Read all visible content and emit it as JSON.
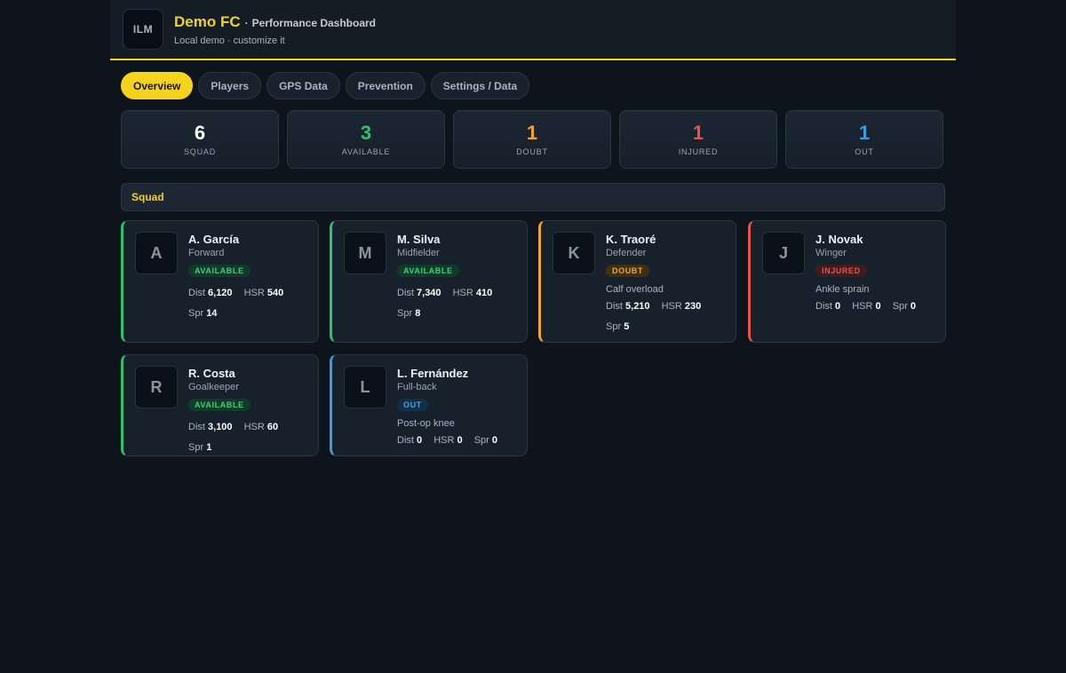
{
  "header": {
    "logo": "ILM",
    "club_name": "Demo FC",
    "separator": "·",
    "dashboard_title": "Performance Dashboard",
    "subtitle": "Local demo · customize it"
  },
  "tabs": [
    {
      "label": "Overview",
      "active": true
    },
    {
      "label": "Players",
      "active": false
    },
    {
      "label": "GPS Data",
      "active": false
    },
    {
      "label": "Prevention",
      "active": false
    },
    {
      "label": "Settings / Data",
      "active": false
    }
  ],
  "stats": [
    {
      "value": "6",
      "label": "SQUAD",
      "color": "#ffffff"
    },
    {
      "value": "3",
      "label": "AVAILABLE",
      "color": "#2ec36b"
    },
    {
      "value": "1",
      "label": "DOUBT",
      "color": "#f3a428"
    },
    {
      "value": "1",
      "label": "INJURED",
      "color": "#e5534b"
    },
    {
      "value": "1",
      "label": "OUT",
      "color": "#3d9be0"
    }
  ],
  "section_title": "Squad",
  "metric_labels": {
    "dist": "Dist",
    "hsr": "HSR",
    "spr": "Spr"
  },
  "players": [
    {
      "initial": "A",
      "name": "A. García",
      "position": "Forward",
      "status": "AVAILABLE",
      "status_key": "available",
      "accent": "#2ec36b",
      "note": "",
      "dist": "6,120",
      "hsr": "540",
      "spr": "14"
    },
    {
      "initial": "M",
      "name": "M. Silva",
      "position": "Midfielder",
      "status": "AVAILABLE",
      "status_key": "available",
      "accent": "#2ec36b",
      "note": "",
      "dist": "7,340",
      "hsr": "410",
      "spr": "8"
    },
    {
      "initial": "K",
      "name": "K. Traoré",
      "position": "Defender",
      "status": "DOUBT",
      "status_key": "doubt",
      "accent": "#f3a428",
      "note": "Calf overload",
      "dist": "5,210",
      "hsr": "230",
      "spr": "5"
    },
    {
      "initial": "J",
      "name": "J. Novak",
      "position": "Winger",
      "status": "INJURED",
      "status_key": "injured",
      "accent": "#e5534b",
      "note": "Ankle sprain",
      "dist": "0",
      "hsr": "0",
      "spr": "0"
    },
    {
      "initial": "R",
      "name": "R. Costa",
      "position": "Goalkeeper",
      "status": "AVAILABLE",
      "status_key": "available",
      "accent": "#2ec36b",
      "note": "",
      "dist": "3,100",
      "hsr": "60",
      "spr": "1"
    },
    {
      "initial": "L",
      "name": "L. Fernández",
      "position": "Full-back",
      "status": "OUT",
      "status_key": "out",
      "accent": "#3d9be0",
      "note": "Post-op knee",
      "dist": "0",
      "hsr": "0",
      "spr": "0"
    }
  ]
}
